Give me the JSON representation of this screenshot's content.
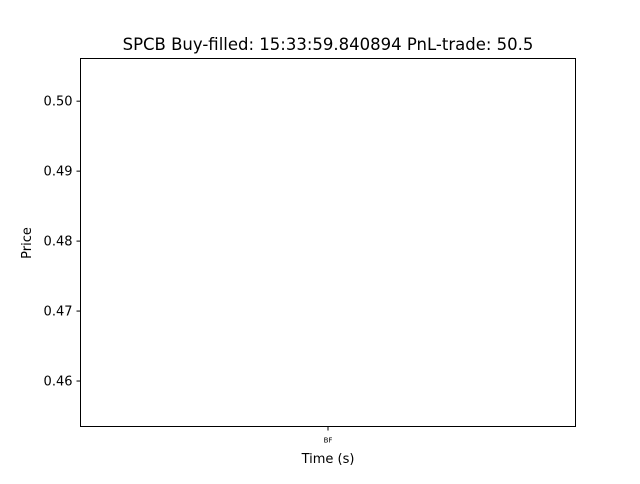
{
  "chart_data": {
    "type": "scatter",
    "title": "SPCB  Buy-filled:  15:33:59.840894  PnL-trade:  50.5",
    "xlabel": "Time (s)",
    "ylabel": "Price",
    "x_ticks": [
      {
        "label": "BF"
      }
    ],
    "y_ticks": [
      {
        "value": 0.46,
        "label": "0.46"
      },
      {
        "value": 0.47,
        "label": "0.47"
      },
      {
        "value": 0.48,
        "label": "0.48"
      },
      {
        "value": 0.49,
        "label": "0.49"
      },
      {
        "value": 0.5,
        "label": "0.50"
      }
    ],
    "ylim": [
      0.4535,
      0.5061
    ],
    "series": [],
    "grid": false,
    "legend": "none"
  }
}
